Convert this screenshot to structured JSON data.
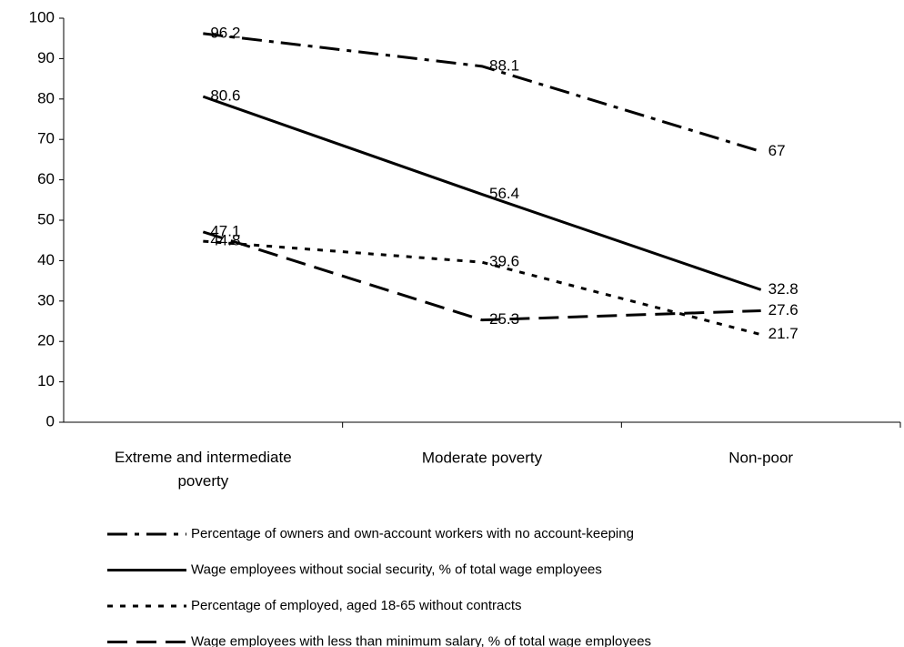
{
  "chart_data": {
    "type": "line",
    "categories": [
      "Extreme and intermediate poverty",
      "Moderate poverty",
      "Non-poor"
    ],
    "series": [
      {
        "name": "Percentage of owners and own-account workers with no account-keeping",
        "color": "#000000",
        "dash": "dashdot",
        "values": [
          96.2,
          88.1,
          67
        ]
      },
      {
        "name": "Wage employees without social security, % of total wage employees",
        "color": "#000000",
        "dash": "solid",
        "values": [
          80.6,
          56.4,
          32.8
        ]
      },
      {
        "name": "Percentage of employed, aged 18-65 without contracts",
        "color": "#000000",
        "dash": "dotted",
        "values": [
          44.8,
          39.6,
          21.7
        ]
      },
      {
        "name": "Wage employees with less than minimum salary, % of total wage employees",
        "color": "#000000",
        "dash": "dashed",
        "values": [
          47.1,
          25.3,
          27.6
        ]
      }
    ],
    "ylim": [
      0,
      100
    ],
    "yticks": [
      0,
      10,
      20,
      30,
      40,
      50,
      60,
      70,
      80,
      90,
      100
    ],
    "grid": false,
    "legend": "bottom"
  }
}
